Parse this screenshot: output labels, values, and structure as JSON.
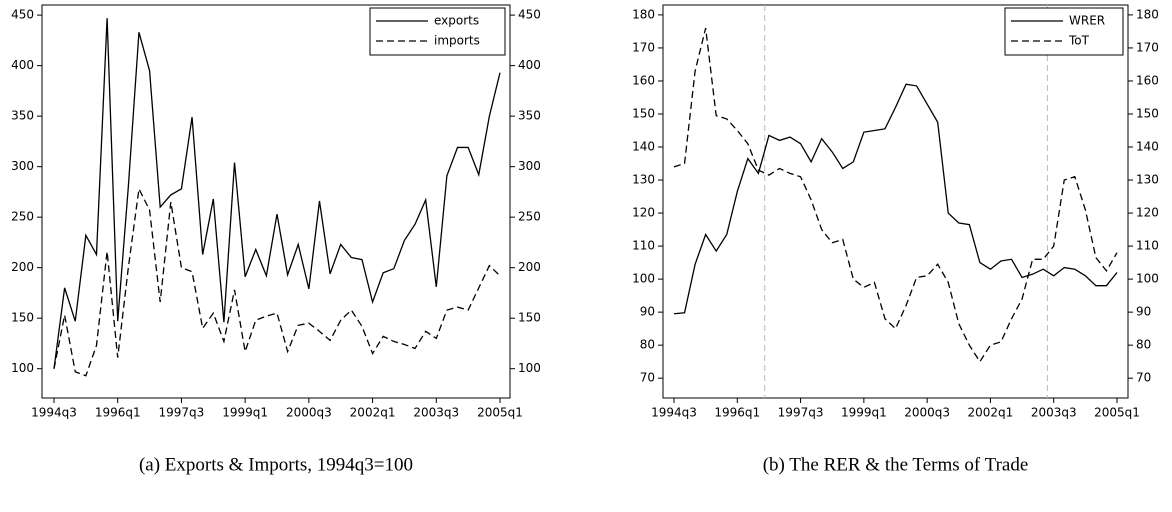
{
  "chart_data": [
    {
      "type": "line",
      "caption": "(a) Exports & Imports, 1994q3=100",
      "categories": [
        "1994q3",
        null,
        null,
        null,
        null,
        null,
        "1996q1",
        null,
        null,
        null,
        null,
        null,
        "1997q3",
        null,
        null,
        null,
        null,
        null,
        "1999q1",
        null,
        null,
        null,
        null,
        null,
        "2000q3",
        null,
        null,
        null,
        null,
        null,
        "2002q1",
        null,
        null,
        null,
        null,
        null,
        "2003q3",
        null,
        null,
        null,
        null,
        null,
        "2005q1"
      ],
      "series": [
        {
          "name": "exports",
          "color": "#000000",
          "dash": "solid",
          "values": [
            100,
            180,
            147,
            232,
            213,
            447,
            147,
            280,
            433,
            395,
            260,
            272,
            278,
            349,
            213,
            268,
            146,
            304,
            191,
            218,
            192,
            253,
            193,
            223,
            179,
            266,
            194,
            223,
            210,
            208,
            166,
            195,
            199,
            227,
            243,
            267,
            181,
            291,
            319,
            319,
            292,
            350,
            393
          ]
        },
        {
          "name": "imports",
          "color": "#000000",
          "dash": "dashed",
          "values": [
            100,
            153,
            97,
            93,
            123,
            216,
            111,
            200,
            278,
            257,
            166,
            265,
            200,
            196,
            140,
            155,
            127,
            178,
            117,
            148,
            152,
            155,
            117,
            143,
            145,
            137,
            128,
            148,
            158,
            142,
            115,
            132,
            127,
            124,
            120,
            137,
            130,
            158,
            161,
            158,
            180,
            202,
            192
          ]
        }
      ],
      "ylim": [
        71,
        460
      ],
      "yticks": [
        100,
        150,
        200,
        250,
        300,
        350,
        400,
        450
      ],
      "right_axis_labels": true,
      "legend": "top-right"
    },
    {
      "type": "line",
      "caption": "(b) The RER & the Terms of Trade",
      "categories": [
        "1994q3",
        null,
        null,
        null,
        null,
        null,
        "1996q1",
        null,
        null,
        null,
        null,
        null,
        "1997q3",
        null,
        null,
        null,
        null,
        null,
        "1999q1",
        null,
        null,
        null,
        null,
        null,
        "2000q3",
        null,
        null,
        null,
        null,
        null,
        "2002q1",
        null,
        null,
        null,
        null,
        null,
        "2003q3",
        null,
        null,
        null,
        null,
        null,
        "2005q1"
      ],
      "series": [
        {
          "name": "WRER",
          "color": "#000000",
          "dash": "solid",
          "values": [
            89.5,
            89.8,
            104.5,
            113.5,
            108.5,
            113.5,
            126.5,
            136.5,
            132,
            143.5,
            142,
            143,
            141,
            135.5,
            142.5,
            138.5,
            133.5,
            135.5,
            144.5,
            145,
            145.5,
            152,
            159,
            158.5,
            153,
            147.5,
            120,
            117,
            116.5,
            105,
            103,
            105.5,
            106,
            100.5,
            101.5,
            103,
            101,
            103.5,
            103,
            101,
            98,
            98,
            102
          ]
        },
        {
          "name": "ToT",
          "color": "#000000",
          "dash": "dashed",
          "values": [
            134,
            135,
            163,
            176,
            149.5,
            148.5,
            145,
            141,
            133,
            131.5,
            133.5,
            132,
            131,
            124,
            115,
            111,
            112,
            100,
            97.5,
            99,
            88,
            85,
            92,
            100.5,
            101,
            104.5,
            99,
            86.5,
            80,
            75,
            80,
            81,
            88,
            94,
            106,
            106,
            110,
            130,
            131,
            121,
            106.5,
            102.5,
            108
          ]
        }
      ],
      "vlines": [
        8.6,
        35.4
      ],
      "ylim": [
        64,
        183
      ],
      "yticks": [
        70,
        80,
        90,
        100,
        110,
        120,
        130,
        140,
        150,
        160,
        170,
        180
      ],
      "right_axis_labels": true,
      "legend": "top-right"
    }
  ]
}
